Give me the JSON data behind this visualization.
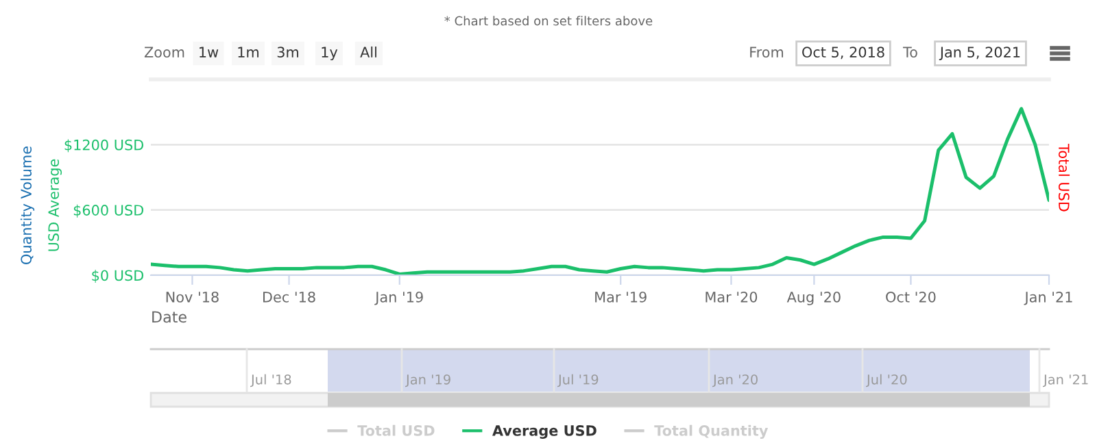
{
  "chart_data": [
    {
      "type": "line",
      "title": "* Chart based on set filters above",
      "xlabel": "Date",
      "ylabel": "USD Average",
      "y2label": "Total USD",
      "y3label": "Quantity Volume",
      "annotations": [
        "Zoom",
        "1w",
        "1m",
        "3m",
        "1y",
        "All",
        "From",
        "Oct 5, 2018",
        "To",
        "Jan 5, 2021"
      ],
      "categories": [
        null,
        null,
        null,
        "Nov '18",
        null,
        null,
        null,
        null,
        null,
        null,
        "Dec '18",
        null,
        null,
        null,
        null,
        null,
        null,
        null,
        "Jan '19",
        null,
        null,
        null,
        null,
        null,
        null,
        null,
        null,
        null,
        null,
        null,
        null,
        null,
        null,
        null,
        "Mar '19",
        null,
        null,
        null,
        null,
        null,
        null,
        null,
        "Mar '20",
        null,
        null,
        null,
        null,
        null,
        "Aug '20",
        null,
        null,
        null,
        null,
        null,
        null,
        "Oct '20",
        null,
        null,
        null,
        null,
        null,
        null,
        null,
        null,
        null,
        "Jan '21"
      ],
      "ylim": [
        0,
        1800
      ],
      "yticks": [
        {
          "value": 0,
          "label": "$0 USD"
        },
        {
          "value": 600,
          "label": "$600 USD"
        },
        {
          "value": 1200,
          "label": "$1200 USD"
        }
      ],
      "grid": "y",
      "legend": "bottom",
      "series": [
        {
          "name": "Total USD",
          "color": "#cccccc",
          "values": [
            null,
            null,
            null,
            null,
            null,
            null,
            null,
            null,
            null,
            null,
            null,
            null,
            null,
            null,
            null,
            null,
            null,
            null,
            null,
            null,
            null,
            null,
            null,
            null,
            null,
            null,
            null,
            null,
            null,
            null,
            null,
            null,
            null,
            null,
            null,
            null,
            null,
            null,
            null,
            null,
            null,
            null,
            null,
            null,
            null,
            null,
            null,
            null,
            null,
            null,
            null,
            null,
            null,
            null,
            null,
            null,
            null,
            null,
            null,
            null,
            null,
            null,
            null,
            null,
            null,
            null
          ]
        },
        {
          "name": "Average USD",
          "color": "#1bbf6b",
          "values": [
            100,
            90,
            80,
            80,
            80,
            70,
            50,
            40,
            50,
            60,
            60,
            60,
            70,
            70,
            70,
            80,
            80,
            50,
            10,
            20,
            30,
            30,
            30,
            30,
            30,
            30,
            30,
            40,
            60,
            80,
            80,
            50,
            40,
            30,
            60,
            80,
            70,
            70,
            60,
            50,
            40,
            50,
            50,
            60,
            70,
            100,
            160,
            140,
            100,
            150,
            210,
            270,
            320,
            350,
            350,
            340,
            500,
            1150,
            1300,
            900,
            800,
            910,
            1250,
            1530,
            1200,
            690
          ]
        },
        {
          "name": "Total Quantity",
          "color": "#cccccc",
          "values": [
            null,
            null,
            null,
            null,
            null,
            null,
            null,
            null,
            null,
            null,
            null,
            null,
            null,
            null,
            null,
            null,
            null,
            null,
            null,
            null,
            null,
            null,
            null,
            null,
            null,
            null,
            null,
            null,
            null,
            null,
            null,
            null,
            null,
            null,
            null,
            null,
            null,
            null,
            null,
            null,
            null,
            null,
            null,
            null,
            null,
            null,
            null,
            null,
            null,
            null,
            null,
            null,
            null,
            null,
            null,
            null,
            null,
            null,
            null,
            null,
            null,
            null,
            null,
            null,
            null,
            null
          ]
        }
      ]
    },
    {
      "type": "other",
      "annotations": [
        "Jul '18",
        "Jan '19",
        "Jul '19",
        "Jan '20",
        "Jul '20",
        "Jan '21"
      ]
    }
  ]
}
